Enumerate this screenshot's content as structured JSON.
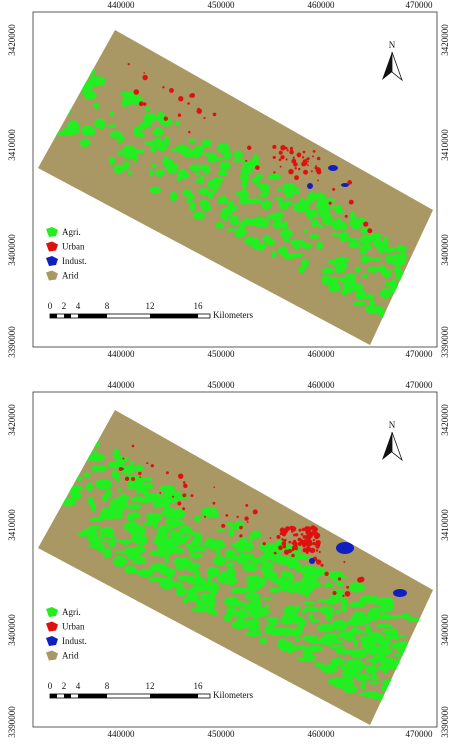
{
  "panels": [
    {
      "north": "N",
      "x_ticks_top": [
        "440000",
        "450000",
        "460000",
        "470000"
      ],
      "x_ticks_bottom": [
        "440000",
        "450000",
        "460000",
        "470000"
      ],
      "y_ticks_left": [
        "3420000",
        "3410000",
        "3400000",
        "3390000"
      ],
      "y_ticks_right": [
        "3420000",
        "3410000",
        "3400000",
        "3390000"
      ],
      "legend": [
        "Agri.",
        "Urban",
        "Indust.",
        "Arid"
      ],
      "scale_labels": [
        "0",
        "2",
        "4",
        "8",
        "12",
        "16"
      ],
      "scale_unit": "Kilometers"
    },
    {
      "north": "N",
      "x_ticks_top": [
        "440000",
        "450000",
        "460000",
        "470000"
      ],
      "x_ticks_bottom": [
        "440000",
        "450000",
        "460000",
        "470000"
      ],
      "y_ticks_left": [
        "3420000",
        "3410000",
        "3400000",
        "3390000"
      ],
      "y_ticks_right": [
        "3420000",
        "3410000",
        "3400000",
        "3390000"
      ],
      "legend": [
        "Agri.",
        "Urban",
        "Indust.",
        "Arid"
      ],
      "scale_labels": [
        "0",
        "2",
        "4",
        "8",
        "12",
        "16"
      ],
      "scale_unit": "Kilometers"
    }
  ]
}
